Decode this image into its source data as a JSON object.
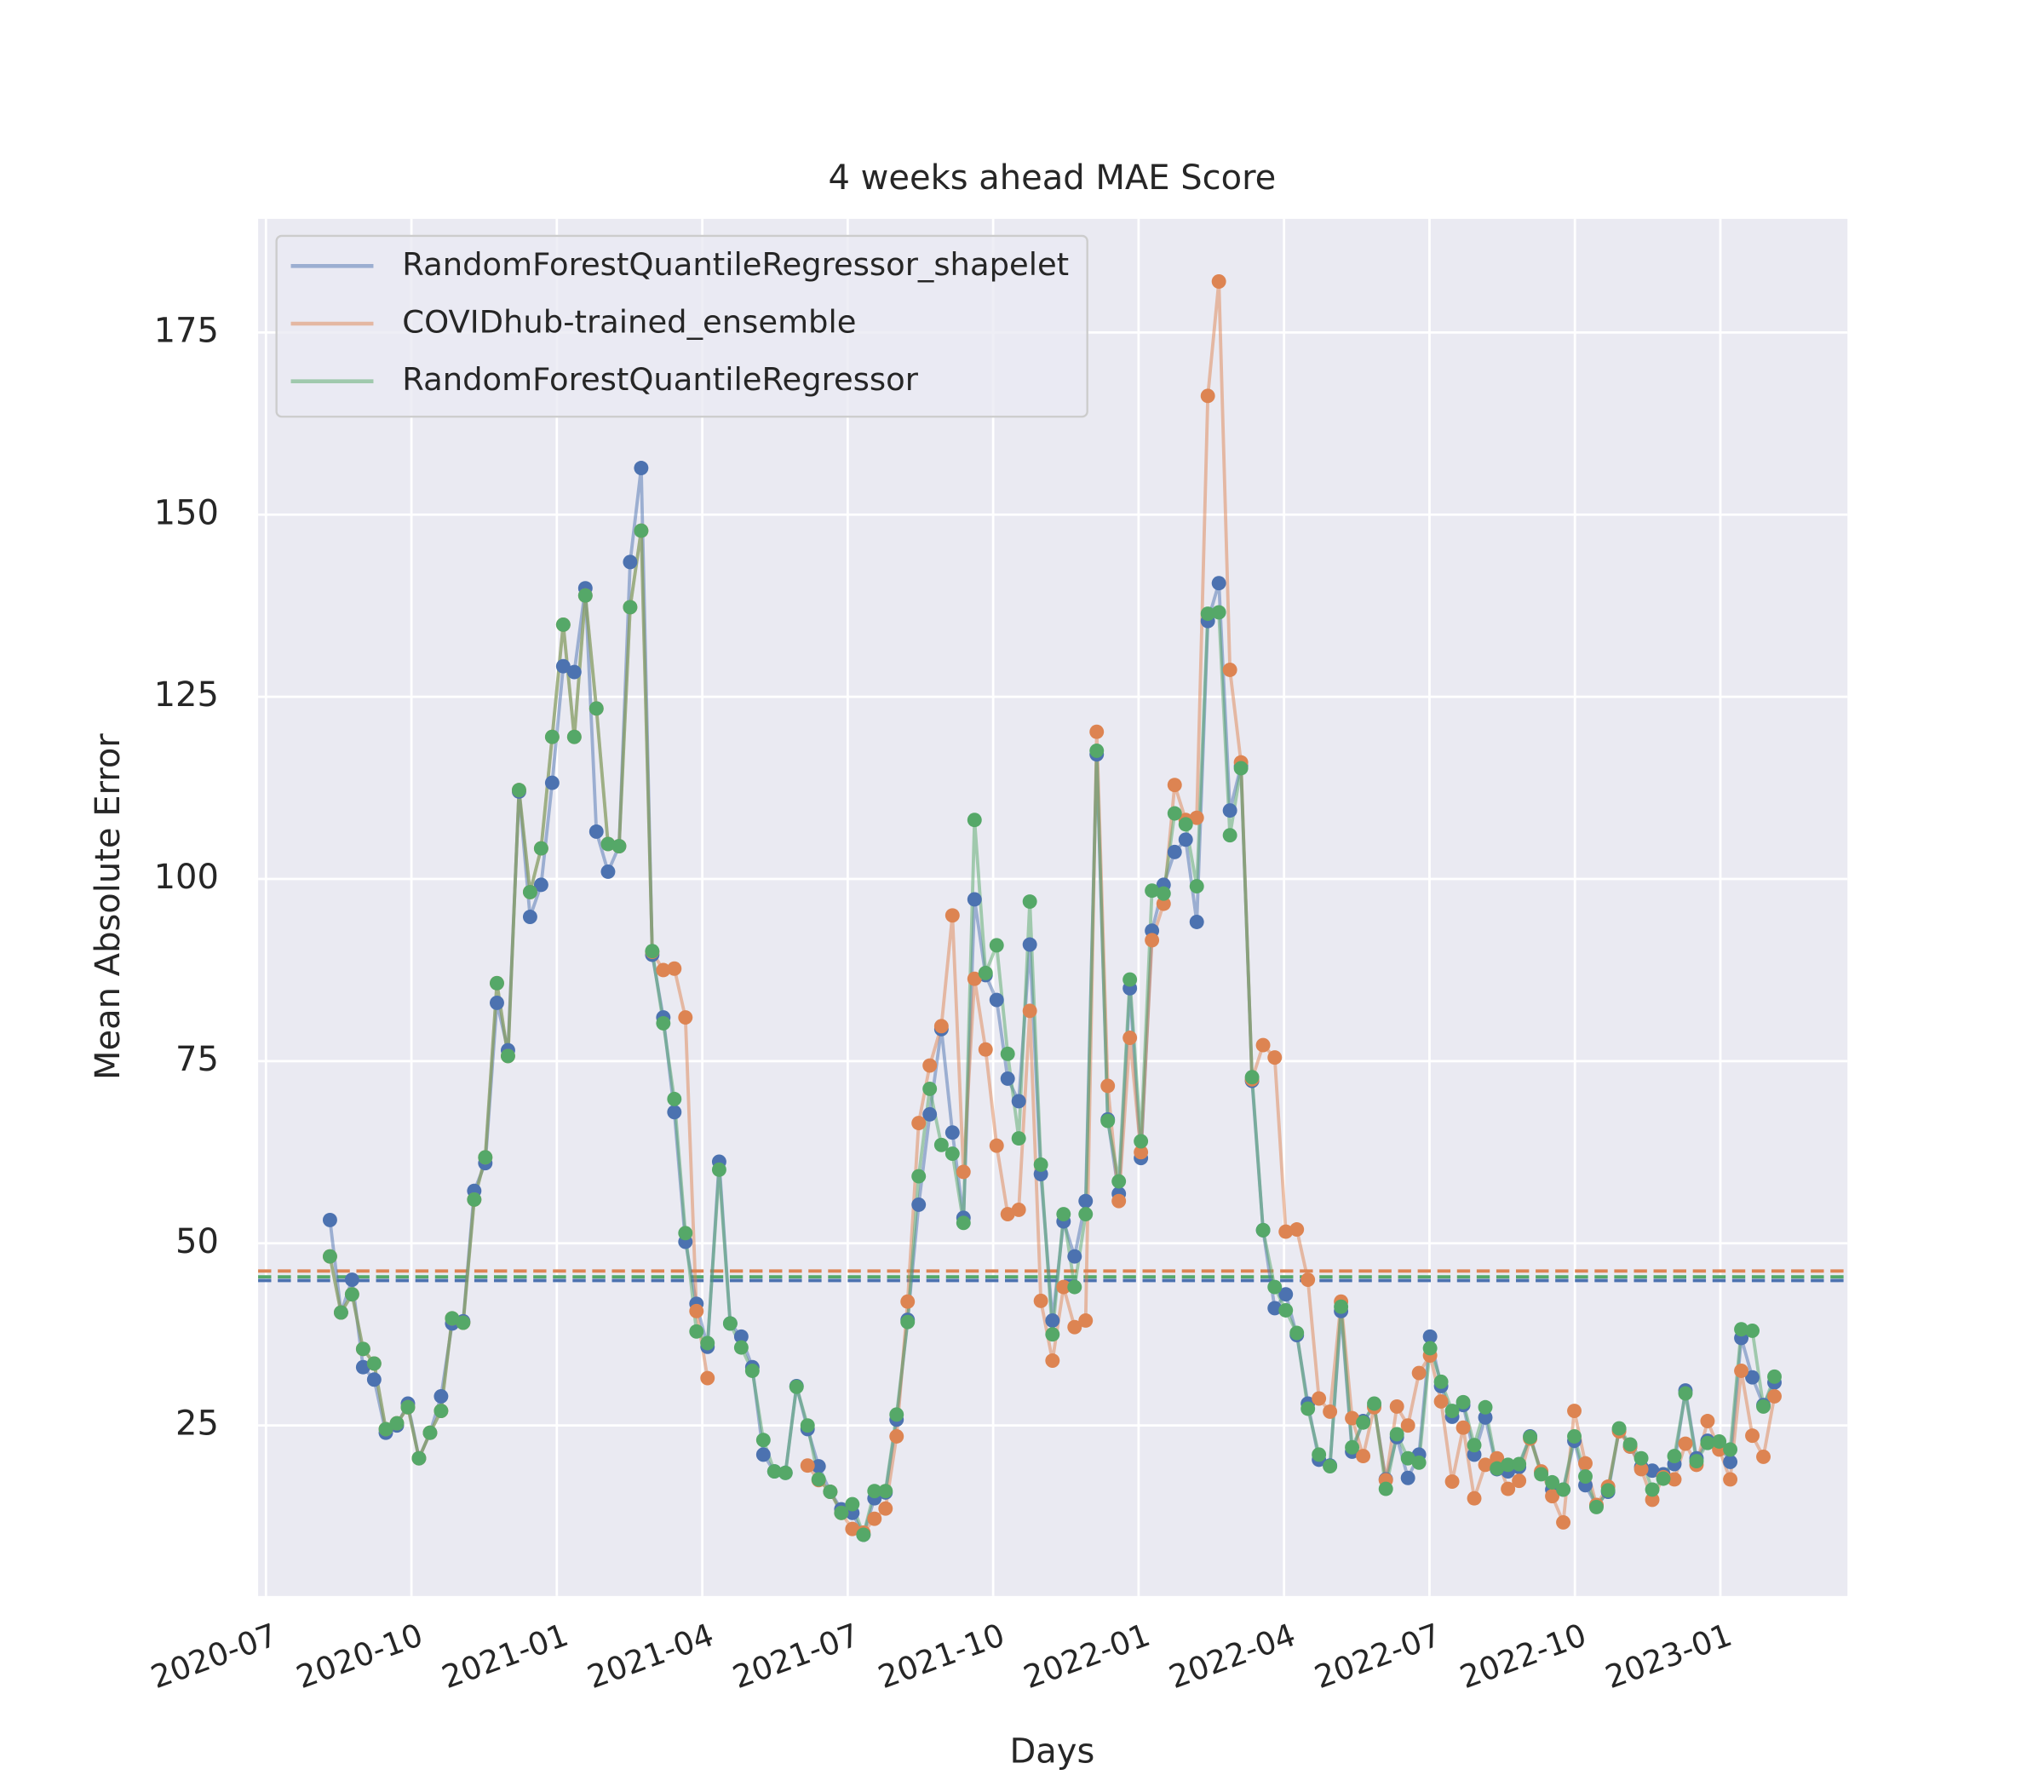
{
  "chart_data": {
    "type": "line",
    "title": "4 weeks ahead MAE Score",
    "x_label": "Days",
    "y_label": "Mean Absolute Error",
    "grid": true,
    "legend": "upper left",
    "xlim": [
      2020.4865,
      2023.2185
    ],
    "ylim": [
      1.6,
      190.6
    ],
    "xticks": [
      {
        "value": 2020.5,
        "label": "2020-07"
      },
      {
        "value": 2020.75,
        "label": "2020-10"
      },
      {
        "value": 2021.0,
        "label": "2021-01"
      },
      {
        "value": 2021.25,
        "label": "2021-04"
      },
      {
        "value": 2021.5,
        "label": "2021-07"
      },
      {
        "value": 2021.75,
        "label": "2021-10"
      },
      {
        "value": 2022.0,
        "label": "2022-01"
      },
      {
        "value": 2022.25,
        "label": "2022-04"
      },
      {
        "value": 2022.5,
        "label": "2022-07"
      },
      {
        "value": 2022.75,
        "label": "2022-10"
      },
      {
        "value": 2023.0,
        "label": "2023-01"
      }
    ],
    "yticks": [
      25,
      50,
      75,
      100,
      125,
      150,
      175
    ],
    "x": [
      2020.61,
      2020.629,
      2020.648,
      2020.667,
      2020.686,
      2020.706,
      2020.725,
      2020.744,
      2020.763,
      2020.782,
      2020.801,
      2020.82,
      2020.839,
      2020.858,
      2020.877,
      2020.897,
      2020.916,
      2020.935,
      2020.954,
      2020.973,
      2020.992,
      2021.011,
      2021.03,
      2021.049,
      2021.068,
      2021.088,
      2021.107,
      2021.126,
      2021.145,
      2021.164,
      2021.183,
      2021.202,
      2021.221,
      2021.24,
      2021.259,
      2021.279,
      2021.298,
      2021.317,
      2021.336,
      2021.355,
      2021.374,
      2021.393,
      2021.412,
      2021.431,
      2021.45,
      2021.47,
      2021.489,
      2021.508,
      2021.527,
      2021.546,
      2021.565,
      2021.584,
      2021.603,
      2021.622,
      2021.641,
      2021.661,
      2021.68,
      2021.699,
      2021.718,
      2021.737,
      2021.756,
      2021.775,
      2021.794,
      2021.813,
      2021.832,
      2021.852,
      2021.871,
      2021.89,
      2021.909,
      2021.928,
      2021.947,
      2021.966,
      2021.985,
      2022.004,
      2022.023,
      2022.043,
      2022.062,
      2022.081,
      2022.1,
      2022.119,
      2022.138,
      2022.157,
      2022.176,
      2022.195,
      2022.214,
      2022.234,
      2022.253,
      2022.272,
      2022.291,
      2022.31,
      2022.329,
      2022.348,
      2022.367,
      2022.386,
      2022.405,
      2022.425,
      2022.444,
      2022.463,
      2022.482,
      2022.501,
      2022.52,
      2022.539,
      2022.558,
      2022.577,
      2022.596,
      2022.616,
      2022.635,
      2022.654,
      2022.673,
      2022.692,
      2022.711,
      2022.73,
      2022.749,
      2022.768,
      2022.787,
      2022.807,
      2022.826,
      2022.845,
      2022.864,
      2022.883,
      2022.902,
      2022.921,
      2022.94,
      2022.959,
      2022.978,
      2022.998,
      2023.017,
      2023.036,
      2023.055,
      2023.074,
      2023.093
    ],
    "series": [
      {
        "name": "RandomForestQuantileRegressor_shapelet",
        "color": "#4c72b0",
        "mean": 44.9,
        "values": [
          53.2,
          40.5,
          45,
          33,
          31.3,
          24,
          25,
          28,
          20.5,
          24,
          29,
          39,
          39.3,
          57.2,
          61,
          83,
          76.5,
          112,
          94.8,
          99.2,
          113.2,
          129.2,
          128.4,
          139.9,
          106.5,
          101,
          104.5,
          143.5,
          156.4,
          89.6,
          81,
          68,
          50.2,
          41.7,
          35.8,
          61.2,
          39,
          37.2,
          33,
          21,
          18.7,
          18.5,
          30.4,
          24.5,
          19.4,
          15.9,
          13.5,
          13,
          10,
          15,
          15.8,
          25.8,
          39.5,
          55.3,
          67.7,
          79.4,
          65.2,
          53.5,
          97.2,
          86.8,
          83.4,
          72.6,
          69.5,
          91,
          59.5,
          39.4,
          53,
          48.2,
          55.8,
          117.1,
          67,
          56.8,
          85,
          61.7,
          92.9,
          99.2,
          103.7,
          105.4,
          94.1,
          135.4,
          140.6,
          109.4,
          115.5,
          72.3,
          51.8,
          41.1,
          43,
          37.4,
          28,
          20.3,
          19.5,
          40.7,
          21.4,
          25.6,
          27.6,
          17.6,
          23.4,
          17.8,
          21,
          37.2,
          30.4,
          26.2,
          27.8,
          21,
          26.1,
          19,
          18.7,
          19.3,
          23.5,
          18.6,
          16.2,
          16.2,
          22.9,
          16.8,
          14,
          15.9,
          24.4,
          22.1,
          19.3,
          18.8,
          18.3,
          19.7,
          29.8,
          20.5,
          22.9,
          22.3,
          20,
          37,
          31.6,
          27.8,
          30.9
        ]
      },
      {
        "name": "COVIDhub-trained_ensemble",
        "color": "#dd8452",
        "mean": 46.2,
        "values": [
          48.2,
          40.5,
          43,
          35.5,
          33.5,
          24.5,
          25.3,
          27.5,
          20.5,
          24,
          27,
          39.7,
          39.1,
          56,
          61.8,
          85.7,
          75.7,
          112.2,
          98.2,
          104.2,
          119.5,
          134.9,
          119.5,
          138.9,
          123.4,
          104.8,
          104.5,
          137.3,
          147.8,
          90,
          87.5,
          87.7,
          81,
          40.7,
          31.5,
          null,
          null,
          null,
          null,
          null,
          null,
          null,
          null,
          19.5,
          17.5,
          15.9,
          13,
          10.8,
          10.3,
          12.2,
          13.6,
          23.5,
          42,
          66.5,
          74.4,
          79.8,
          95,
          59.8,
          86.3,
          76.6,
          63.4,
          54,
          54.6,
          81.9,
          42.1,
          33.9,
          44,
          38.5,
          39.4,
          120.2,
          71.6,
          55.8,
          78.2,
          62.5,
          91.6,
          96.6,
          112.9,
          108.1,
          108.4,
          166.3,
          182,
          128.7,
          116,
          72.5,
          77.2,
          75.5,
          51.6,
          51.9,
          45,
          28.7,
          26.9,
          42,
          26,
          20.8,
          27.5,
          17.5,
          27.6,
          25,
          32.2,
          34.6,
          28.3,
          17.3,
          24.7,
          15,
          19.6,
          20.5,
          16.3,
          17.4,
          23.2,
          18.7,
          15.3,
          11.7,
          27,
          19.8,
          14.1,
          16.6,
          24.2,
          22.1,
          19,
          14.8,
          17.9,
          17.6,
          22.5,
          19.6,
          25.6,
          21.7,
          17.6,
          32.5,
          23.6,
          20.7,
          29
        ]
      },
      {
        "name": "RandomForestQuantileRegressor",
        "color": "#55a868",
        "mean": 45.4,
        "values": [
          48.2,
          40.5,
          43,
          35.5,
          33.5,
          24.5,
          25.3,
          27.5,
          20.5,
          24,
          27,
          39.7,
          39.1,
          56,
          61.8,
          85.7,
          75.7,
          112.2,
          98.2,
          104.2,
          119.5,
          134.9,
          119.5,
          138.9,
          123.4,
          104.8,
          104.5,
          137.3,
          147.8,
          90.1,
          80.2,
          69.8,
          51.4,
          37.9,
          36.3,
          60.1,
          39,
          35.7,
          32.5,
          23,
          18.7,
          18.5,
          30.3,
          25,
          17.6,
          15.9,
          13,
          14.2,
          10,
          16,
          16,
          26.5,
          39.2,
          59.2,
          71.2,
          63.5,
          62.3,
          52.8,
          108.1,
          87.1,
          90.9,
          76,
          64.4,
          96.9,
          60.8,
          37.5,
          54,
          44,
          54,
          117.6,
          66.8,
          58.5,
          86.2,
          64,
          98.4,
          98,
          109,
          107.5,
          99,
          136.4,
          136.6,
          106,
          115.2,
          72.8,
          51.8,
          44,
          40.8,
          37.7,
          27.3,
          21,
          19.4,
          41.3,
          22,
          25.4,
          28,
          16.3,
          23.8,
          20.5,
          19.9,
          35.6,
          31,
          27,
          28.2,
          22.3,
          27.5,
          19.1,
          19.6,
          19.7,
          23.4,
          18.3,
          17.2,
          16.2,
          23.5,
          18,
          13.8,
          16.1,
          24.6,
          22.4,
          20.5,
          16.2,
          17.7,
          20.8,
          29.4,
          20.1,
          22.6,
          22.8,
          21.7,
          38.2,
          38,
          27.6,
          31.7
        ]
      }
    ]
  }
}
